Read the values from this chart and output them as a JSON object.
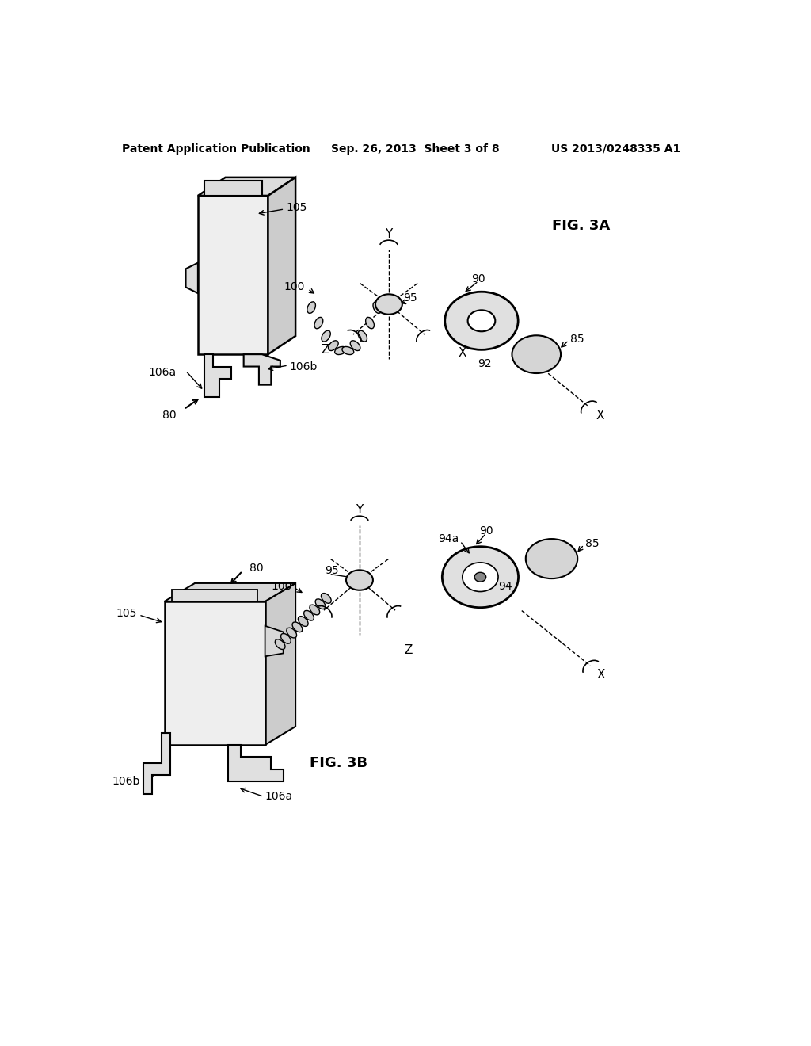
{
  "background_color": "#ffffff",
  "header_left": "Patent Application Publication",
  "header_center": "Sep. 26, 2013  Sheet 3 of 8",
  "header_right": "US 2013/0248335 A1",
  "fig3a_label": "FIG. 3A",
  "fig3b_label": "FIG. 3B",
  "line_color": "#000000",
  "text_color": "#000000"
}
